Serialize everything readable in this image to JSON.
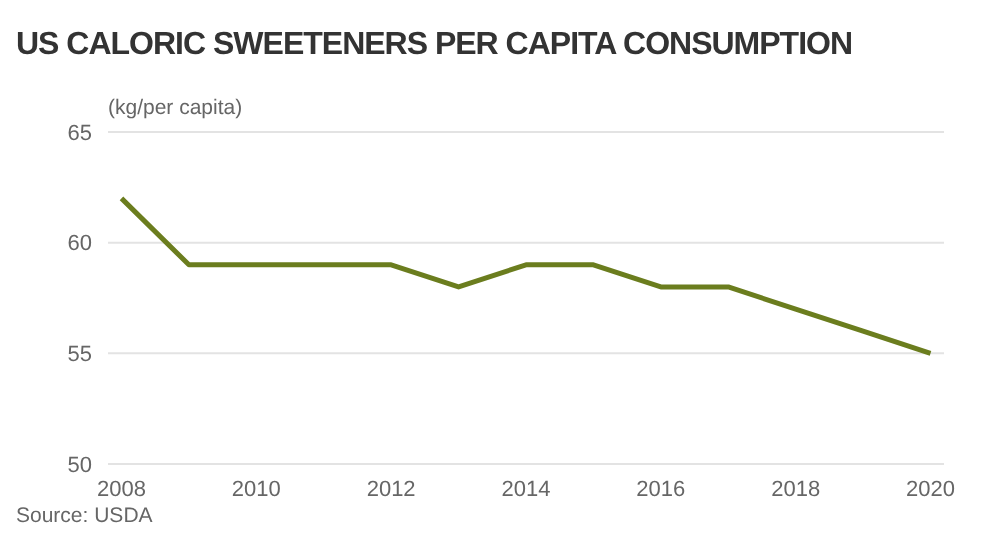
{
  "chart_data": {
    "type": "line",
    "title": "US CALORIC SWEETENERS PER CAPITA CONSUMPTION",
    "ylabel": "(kg/per capita)",
    "x": [
      2008,
      2009,
      2010,
      2011,
      2012,
      2013,
      2014,
      2015,
      2016,
      2017,
      2018,
      2019,
      2020
    ],
    "series": [
      {
        "color": "#6b7d1e",
        "values": [
          62,
          59,
          59,
          59,
          59,
          58,
          59,
          59,
          58,
          58,
          57,
          56,
          55
        ]
      }
    ],
    "xlim": [
      2007.8,
      2020.2
    ],
    "xticks": [
      2008,
      2010,
      2012,
      2014,
      2016,
      2018,
      2020
    ],
    "ylim": [
      50,
      65
    ],
    "yticks": [
      50,
      55,
      60,
      65
    ],
    "grid": "y",
    "marker": "none",
    "line_style": "solid",
    "annotations": [
      "Source: USDA"
    ]
  }
}
